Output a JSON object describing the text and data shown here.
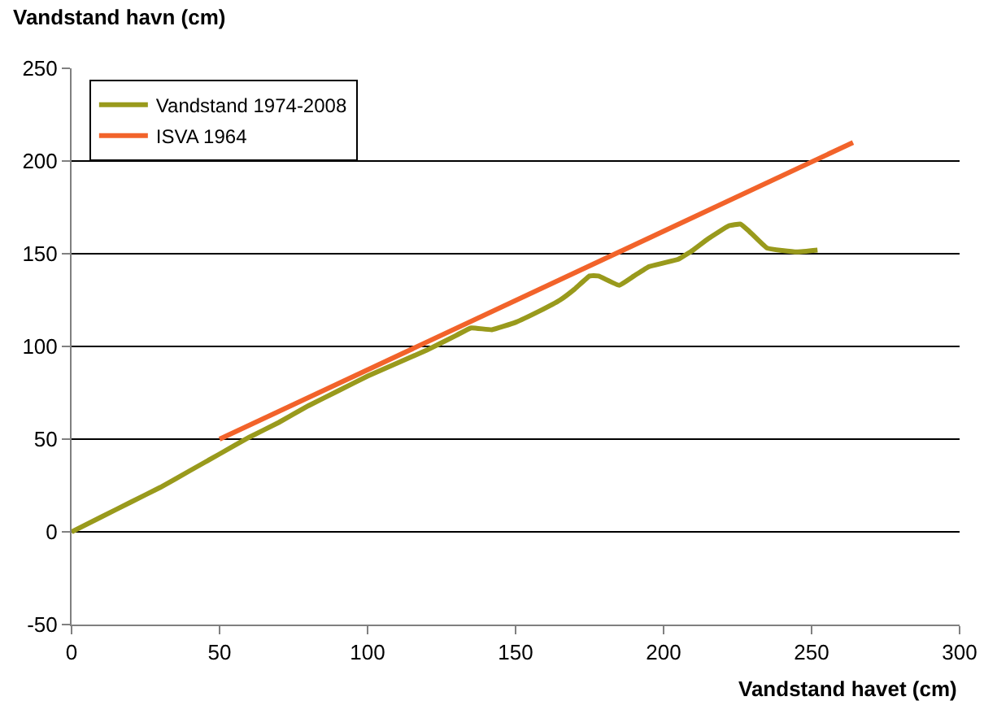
{
  "chart_data": {
    "type": "line",
    "xlabel": "Vandstand havet (cm)",
    "ylabel": "Vandstand havn (cm)",
    "series": [
      {
        "name": "Vandstand 1974-2008",
        "color": "#999a1c",
        "x": [
          0,
          10,
          20,
          30,
          40,
          50,
          60,
          70,
          80,
          90,
          100,
          110,
          120,
          130,
          135,
          142,
          150,
          158,
          165,
          170,
          175,
          178,
          185,
          190,
          195,
          200,
          205,
          210,
          215,
          222,
          226,
          229,
          235,
          245,
          252
        ],
        "values": [
          0,
          8,
          16,
          24,
          33,
          42,
          51,
          59,
          68,
          76,
          84,
          91,
          98,
          106,
          110,
          109,
          113,
          119,
          125,
          131,
          138,
          138,
          133,
          138,
          143,
          145,
          147,
          152,
          158,
          165,
          166,
          162,
          153,
          151,
          152
        ]
      },
      {
        "name": "ISVA 1964",
        "color": "#f2632a",
        "x": [
          50,
          264
        ],
        "values": [
          50,
          210
        ]
      }
    ],
    "xlim": [
      0,
      300
    ],
    "xticks": [
      0,
      50,
      100,
      150,
      200,
      250,
      300
    ],
    "ylim": [
      -50,
      250
    ],
    "yticks": [
      -50,
      0,
      50,
      100,
      150,
      200,
      250
    ],
    "grid": "y",
    "legend": "top left",
    "marker": "none",
    "line_style": "solid"
  }
}
